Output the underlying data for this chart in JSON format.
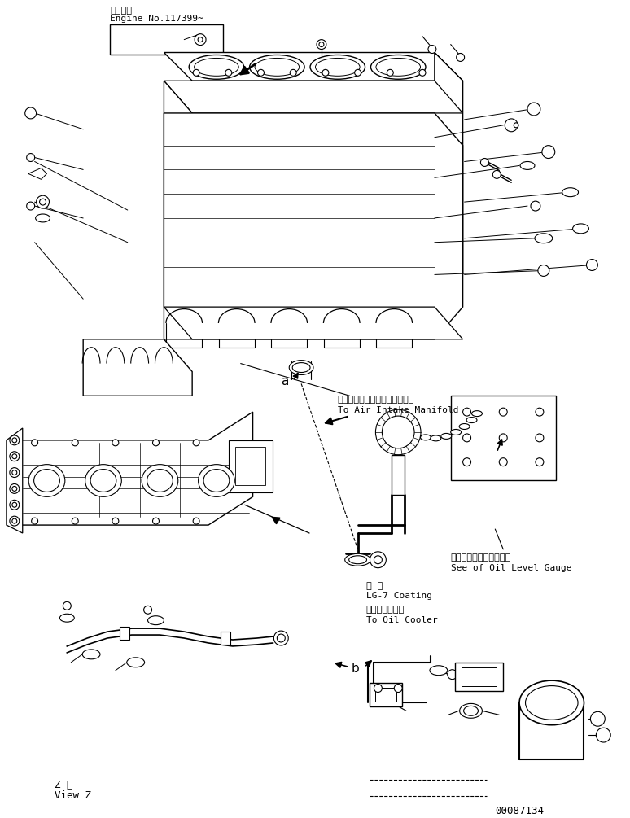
{
  "title_jp": "適用号機",
  "title_en": "Engine No.117399~",
  "annotation1_jp": "エアーインテークマニホルドヘ",
  "annotation1_en": "To Air Intake Manifold",
  "annotation2_jp": "オイルレベルゲージ参照",
  "annotation2_en": "See of Oil Level Gauge",
  "annotation3_jp": "塗 布",
  "annotation3_en": "LG-7 Coating",
  "annotation4_jp": "オイルクーラヘ",
  "annotation4_en": "To Oil Cooler",
  "label_a": "a",
  "label_b": "b",
  "label_viewz_jp": "Z 視",
  "label_viewz_en": "View Z",
  "part_number": "00087134",
  "bg_color": "#ffffff",
  "line_color": "#000000",
  "fig_width": 7.74,
  "fig_height": 10.05,
  "dpi": 100
}
